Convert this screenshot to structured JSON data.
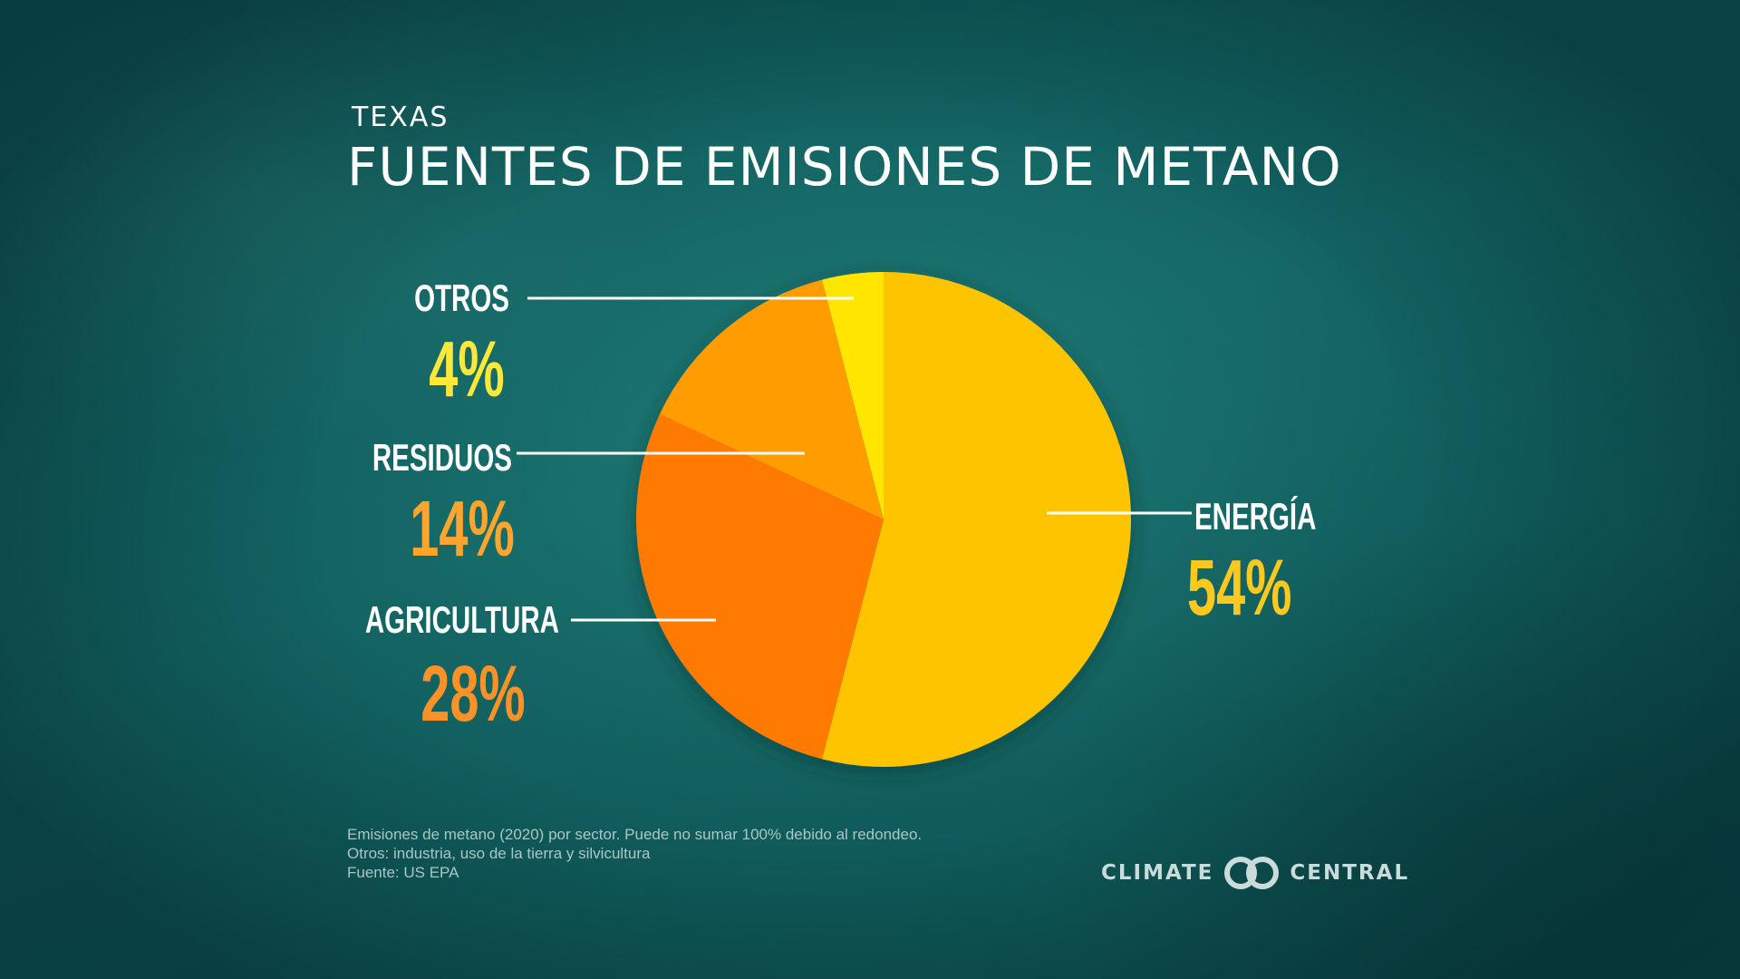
{
  "header": {
    "region": "TEXAS",
    "title": "FUENTES DE EMISIONES DE METANO"
  },
  "chart_data": {
    "type": "pie",
    "categories": [
      "ENERGÍA",
      "AGRICULTURA",
      "RESIDUOS",
      "OTROS"
    ],
    "values": [
      54,
      28,
      14,
      4
    ],
    "labels": [
      "54%",
      "28%",
      "14%",
      "4%"
    ],
    "colors": [
      "#ffc400",
      "#ff7a00",
      "#ff9c00",
      "#ffe600"
    ],
    "label_colors": [
      "#ffc81e",
      "#ff9126",
      "#ffa52e",
      "#ffe837"
    ]
  },
  "footnotes": [
    "Emisiones de metano (2020) por sector. Puede no sumar 100% debido al redondeo.",
    "Otros: industria, uso de la tierra y silvicultura",
    "Fuente: US EPA"
  ],
  "logo": {
    "left": "CLIMATE",
    "right": "CENTRAL",
    "icon": "climate-central-rings-icon"
  }
}
